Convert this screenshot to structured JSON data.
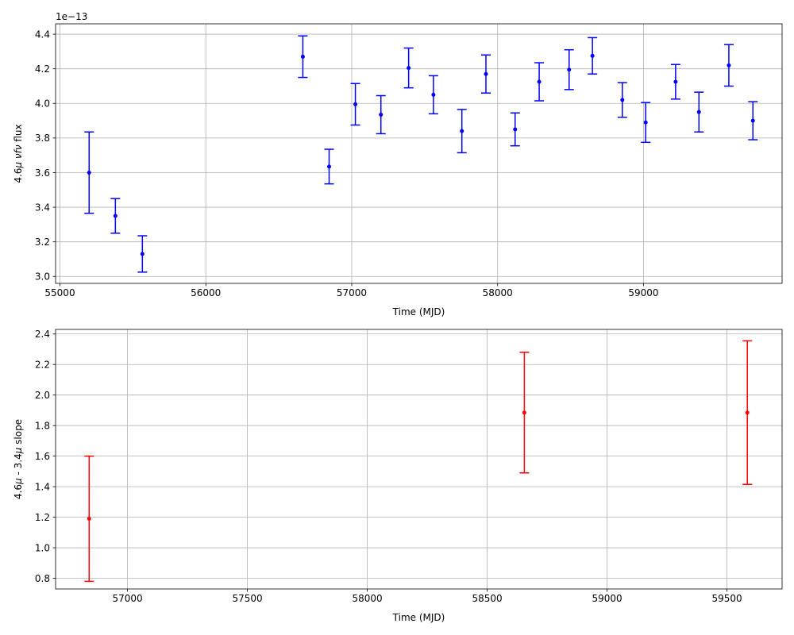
{
  "chart_data": [
    {
      "type": "scatter",
      "title": "",
      "xlabel": "Time (MJD)",
      "ylabel": "4.6μ νfν flux",
      "ylabel_parts": {
        "pre": "4.6",
        "mu": "μ",
        "mid": " ",
        "nu_f_nu": "νfν",
        "post": " flux"
      },
      "y_offset_text": "1e−13",
      "xlim": [
        54970,
        59950
      ],
      "ylim": [
        2.96,
        4.46
      ],
      "x_ticks": [
        55000,
        56000,
        57000,
        58000,
        59000
      ],
      "x_tick_labels": [
        "55000",
        "56000",
        "57000",
        "58000",
        "59000"
      ],
      "y_ticks": [
        3.0,
        3.2,
        3.4,
        3.6,
        3.8,
        4.0,
        4.2,
        4.4
      ],
      "y_tick_labels": [
        "3.0",
        "3.2",
        "3.4",
        "3.6",
        "3.8",
        "4.0",
        "4.2",
        "4.4"
      ],
      "grid": true,
      "color": "#0000ff",
      "series": [
        {
          "points": [
            {
              "x": 55200,
              "y": 3.6,
              "err": 0.235
            },
            {
              "x": 55380,
              "y": 3.35,
              "err": 0.1
            },
            {
              "x": 55565,
              "y": 3.13,
              "err": 0.105
            },
            {
              "x": 56665,
              "y": 4.27,
              "err": 0.12
            },
            {
              "x": 56845,
              "y": 3.635,
              "err": 0.1
            },
            {
              "x": 57025,
              "y": 3.995,
              "err": 0.12
            },
            {
              "x": 57200,
              "y": 3.935,
              "err": 0.11
            },
            {
              "x": 57390,
              "y": 4.205,
              "err": 0.115
            },
            {
              "x": 57560,
              "y": 4.05,
              "err": 0.11
            },
            {
              "x": 57755,
              "y": 3.84,
              "err": 0.125
            },
            {
              "x": 57920,
              "y": 4.17,
              "err": 0.11
            },
            {
              "x": 58120,
              "y": 3.85,
              "err": 0.095
            },
            {
              "x": 58285,
              "y": 4.125,
              "err": 0.11
            },
            {
              "x": 58490,
              "y": 4.195,
              "err": 0.115
            },
            {
              "x": 58650,
              "y": 4.275,
              "err": 0.105
            },
            {
              "x": 58855,
              "y": 4.02,
              "err": 0.1
            },
            {
              "x": 59015,
              "y": 3.89,
              "err": 0.115
            },
            {
              "x": 59220,
              "y": 4.125,
              "err": 0.1
            },
            {
              "x": 59380,
              "y": 3.95,
              "err": 0.115
            },
            {
              "x": 59585,
              "y": 4.22,
              "err": 0.12
            },
            {
              "x": 59750,
              "y": 3.9,
              "err": 0.11
            }
          ]
        }
      ]
    },
    {
      "type": "scatter",
      "title": "",
      "xlabel": "Time (MJD)",
      "ylabel": "4.6μ - 3.4μ slope",
      "ylabel_parts": {
        "pre": "4.6",
        "mu1": "μ",
        "mid": " - 3.4",
        "mu2": "μ",
        "post": " slope"
      },
      "xlim": [
        56700,
        59730
      ],
      "ylim": [
        0.73,
        2.43
      ],
      "x_ticks": [
        57000,
        57500,
        58000,
        58500,
        59000,
        59500
      ],
      "x_tick_labels": [
        "57000",
        "57500",
        "58000",
        "58500",
        "59000",
        "59500"
      ],
      "y_ticks": [
        0.8,
        1.0,
        1.2,
        1.4,
        1.6,
        1.8,
        2.0,
        2.2,
        2.4
      ],
      "y_tick_labels": [
        "0.8",
        "1.0",
        "1.2",
        "1.4",
        "1.6",
        "1.8",
        "2.0",
        "2.2",
        "2.4"
      ],
      "grid": true,
      "color": "#ff0000",
      "series": [
        {
          "points": [
            {
              "x": 56840,
              "y": 1.19,
              "err": 0.41
            },
            {
              "x": 58655,
              "y": 1.885,
              "err": 0.395
            },
            {
              "x": 59585,
              "y": 1.885,
              "err": 0.47
            }
          ]
        }
      ]
    }
  ]
}
